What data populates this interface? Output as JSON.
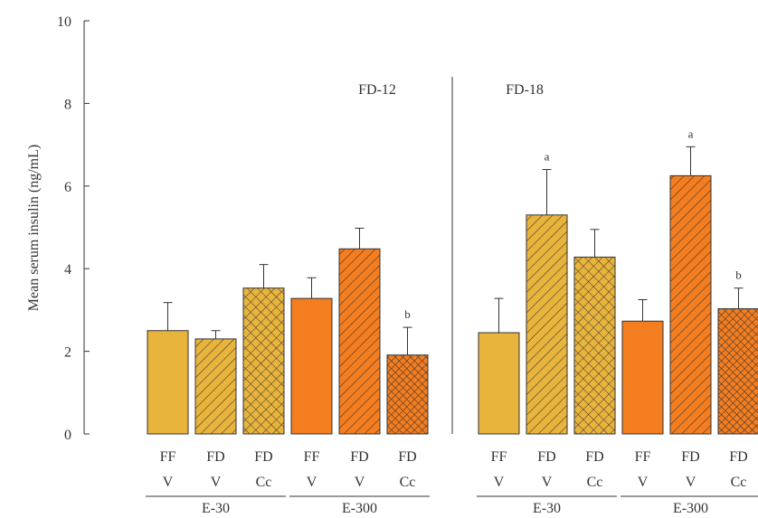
{
  "chart_data": {
    "type": "bar",
    "ylabel": "Mean serum insulin (ng/mL)",
    "ylim": [
      0,
      10
    ],
    "yticks": [
      0,
      2,
      4,
      6,
      8,
      10
    ],
    "grid": false,
    "colors": {
      "E-30": "#E9B43C",
      "E-300": "#F37D1F",
      "edge": "#333333",
      "text": "#333333"
    },
    "panels": [
      {
        "label": "FD-12",
        "bars": [
          {
            "feed": "FF",
            "treat": "V",
            "group": "E-30",
            "pattern": "solid",
            "value": 2.5,
            "error": 0.68,
            "sig": ""
          },
          {
            "feed": "FD",
            "treat": "V",
            "group": "E-30",
            "pattern": "diag",
            "value": 2.3,
            "error": 0.2,
            "sig": ""
          },
          {
            "feed": "FD",
            "treat": "Cc",
            "group": "E-30",
            "pattern": "cross",
            "value": 3.53,
            "error": 0.57,
            "sig": ""
          },
          {
            "feed": "FF",
            "treat": "V",
            "group": "E-300",
            "pattern": "solid",
            "value": 3.28,
            "error": 0.5,
            "sig": ""
          },
          {
            "feed": "FD",
            "treat": "V",
            "group": "E-300",
            "pattern": "diag",
            "value": 4.48,
            "error": 0.5,
            "sig": ""
          },
          {
            "feed": "FD",
            "treat": "Cc",
            "group": "E-300",
            "pattern": "cross",
            "value": 1.91,
            "error": 0.67,
            "sig": "b"
          }
        ]
      },
      {
        "label": "FD-18",
        "bars": [
          {
            "feed": "FF",
            "treat": "V",
            "group": "E-30",
            "pattern": "solid",
            "value": 2.45,
            "error": 0.83,
            "sig": ""
          },
          {
            "feed": "FD",
            "treat": "V",
            "group": "E-30",
            "pattern": "diag",
            "value": 5.3,
            "error": 1.1,
            "sig": "a"
          },
          {
            "feed": "FD",
            "treat": "Cc",
            "group": "E-30",
            "pattern": "cross",
            "value": 4.28,
            "error": 0.67,
            "sig": ""
          },
          {
            "feed": "FF",
            "treat": "V",
            "group": "E-300",
            "pattern": "solid",
            "value": 2.73,
            "error": 0.52,
            "sig": ""
          },
          {
            "feed": "FD",
            "treat": "V",
            "group": "E-300",
            "pattern": "diag",
            "value": 6.25,
            "error": 0.7,
            "sig": "a"
          },
          {
            "feed": "FD",
            "treat": "Cc",
            "group": "E-300",
            "pattern": "cross",
            "value": 3.03,
            "error": 0.5,
            "sig": "b"
          }
        ]
      }
    ]
  }
}
